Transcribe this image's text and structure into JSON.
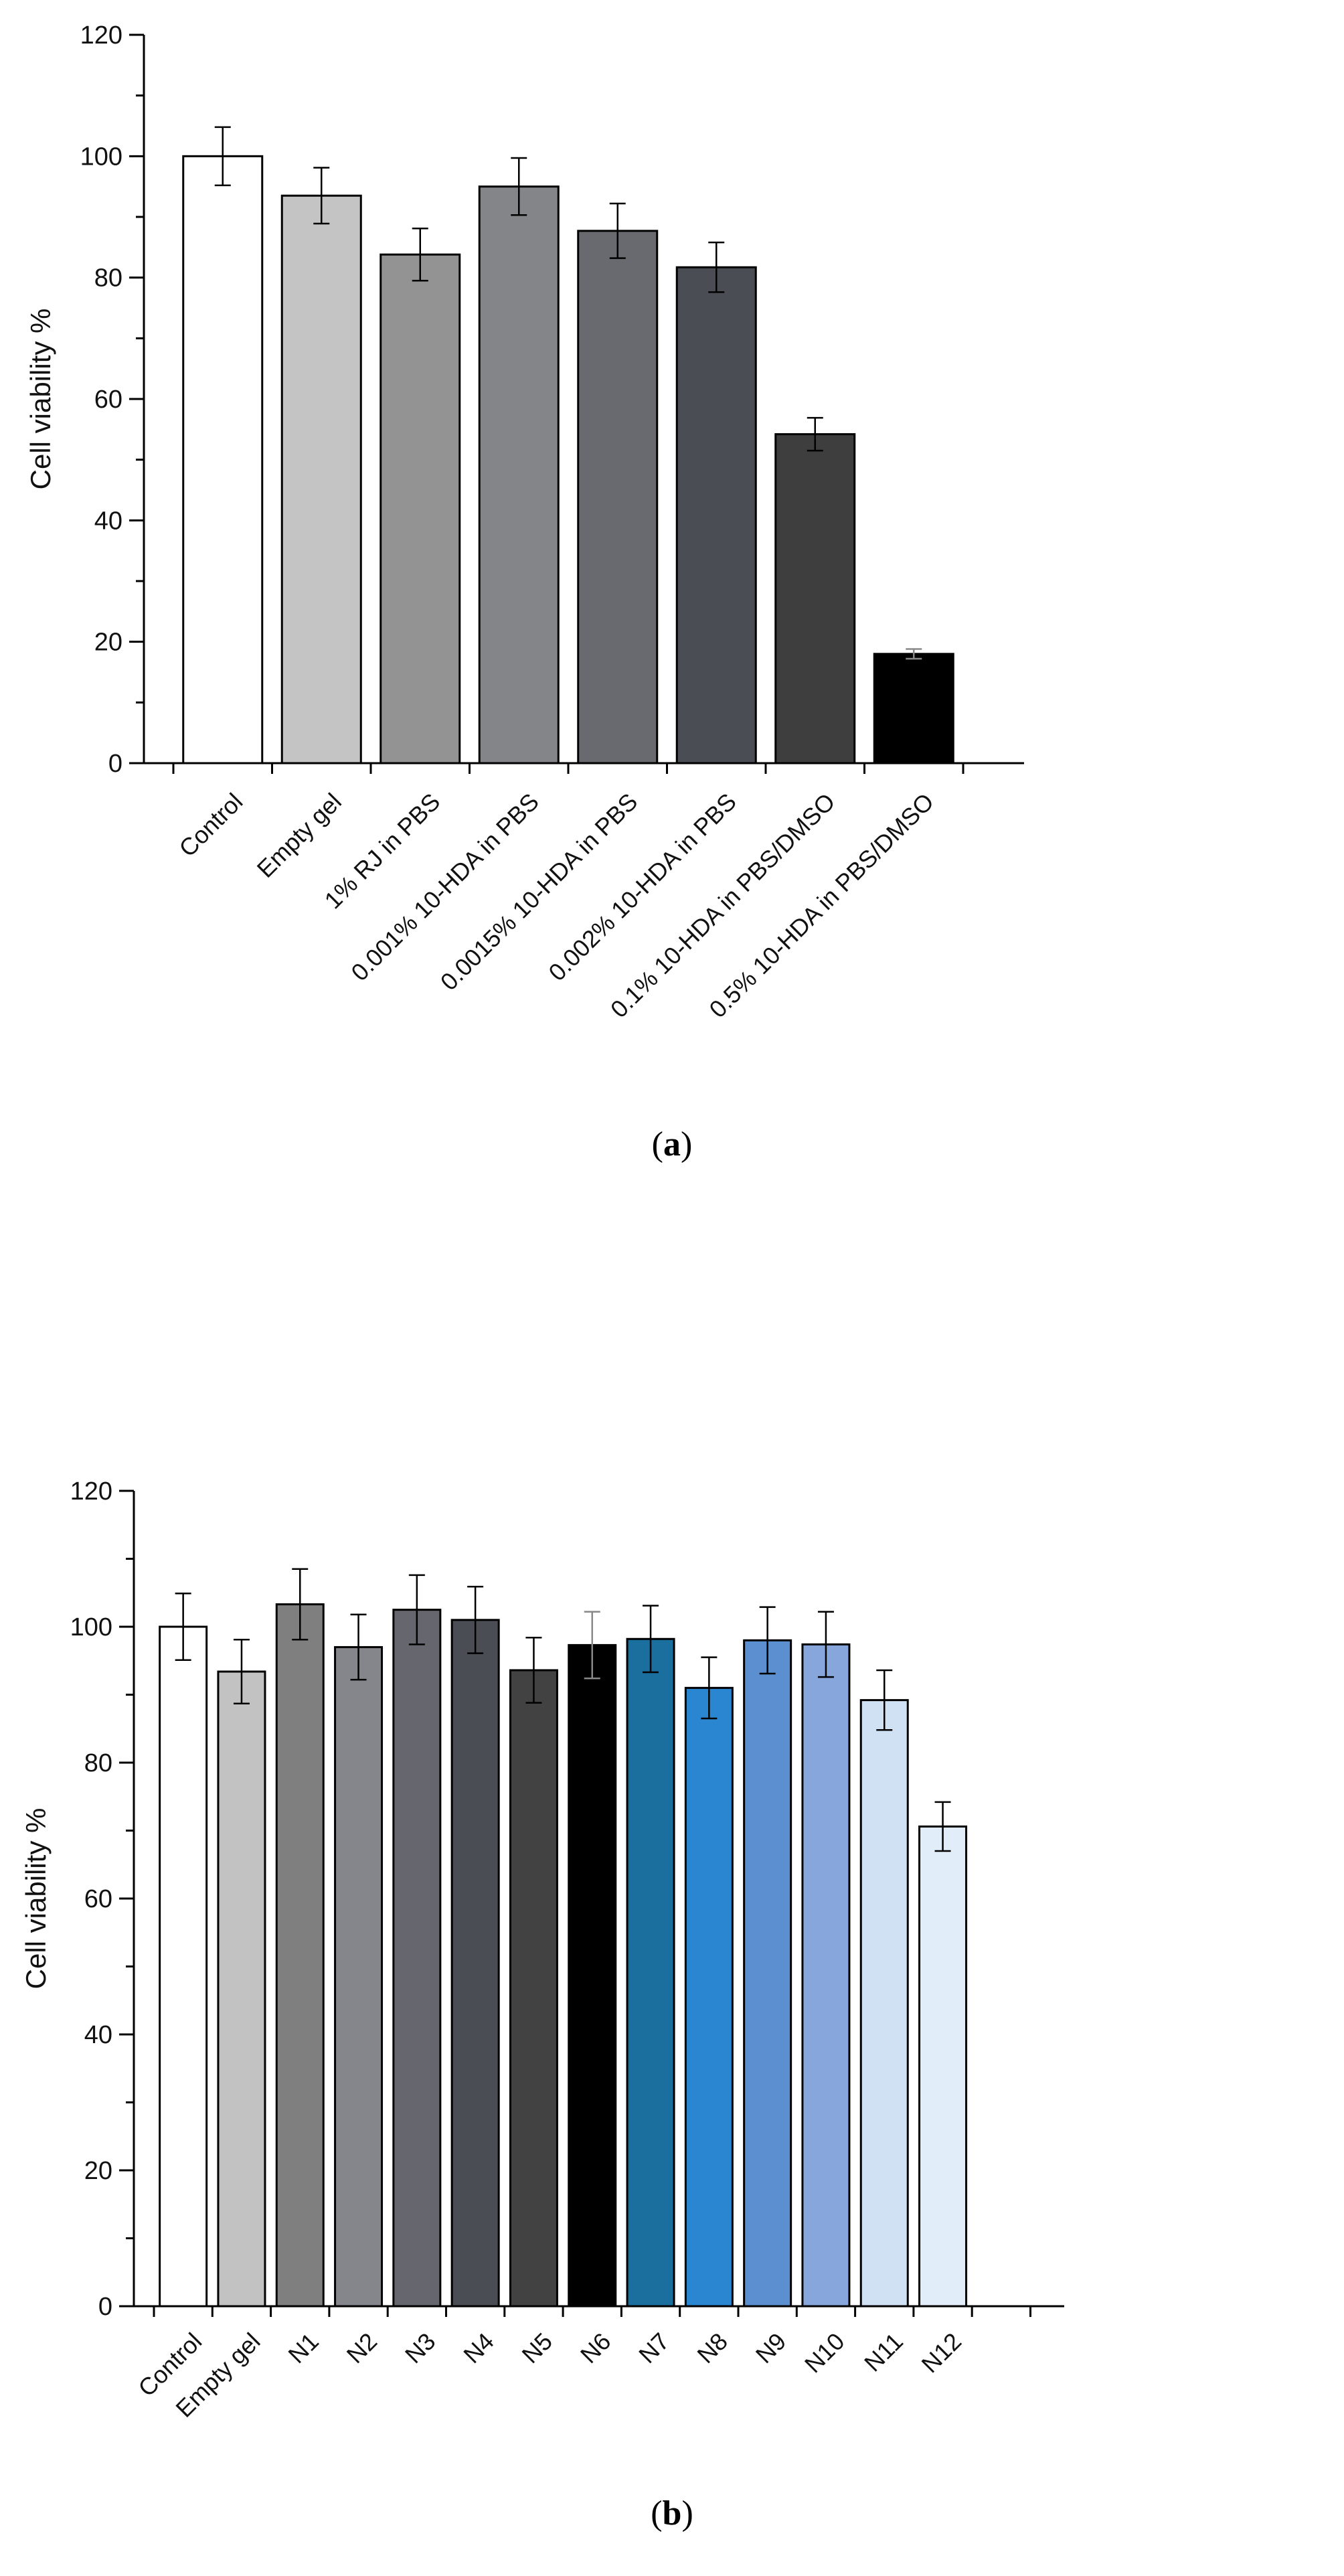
{
  "chart_data": [
    {
      "type": "bar",
      "panel": "a",
      "ylabel": "Cell viability %",
      "xlabel": "",
      "ylim": [
        0,
        120
      ],
      "yticks": [
        0,
        20,
        40,
        60,
        80,
        100,
        120
      ],
      "grid": false,
      "categories": [
        "Control",
        "Empty gel",
        "1% RJ in PBS",
        "0.001% 10-HDA in PBS",
        "0.0015% 10-HDA in PBS",
        "0.002% 10-HDA in PBS",
        "0.1% 10-HDA in PBS/DMSO",
        "0.5% 10-HDA in PBS/DMSO"
      ],
      "values": [
        100,
        93.5,
        83.8,
        95,
        87.7,
        81.7,
        54.2,
        18
      ],
      "errors": [
        4.8,
        4.6,
        4.3,
        4.7,
        4.5,
        4.1,
        2.7,
        0.8
      ],
      "colors": [
        "#ffffff",
        "#c4c4c4",
        "#939393",
        "#848589",
        "#686a6f",
        "#4a4d53",
        "#3e3e3e",
        "#000000"
      ]
    },
    {
      "type": "bar",
      "panel": "b",
      "ylabel": "Cell viability %",
      "xlabel": "",
      "ylim": [
        0,
        120
      ],
      "yticks": [
        0,
        20,
        40,
        60,
        80,
        100,
        120
      ],
      "grid": false,
      "categories": [
        "Control",
        "Empty gel",
        "N1",
        "N2",
        "N3",
        "N4",
        "N5",
        "N6",
        "N7",
        "N8",
        "N9",
        "N10",
        "N11",
        "N12"
      ],
      "values": [
        100,
        93.4,
        103.3,
        97,
        102.5,
        101,
        93.6,
        97.3,
        98.2,
        91,
        98,
        97.4,
        89.2,
        70.6
      ],
      "errors": [
        4.9,
        4.7,
        5.2,
        4.8,
        5.1,
        4.9,
        4.8,
        4.9,
        4.9,
        4.5,
        4.9,
        4.8,
        4.4,
        3.6
      ],
      "colors": [
        "#ffffff",
        "#c2c2c2",
        "#7f7f7f",
        "#85868b",
        "#66676e",
        "#4a4d53",
        "#424242",
        "#000000",
        "#1a6f9f",
        "#2a86d1",
        "#5c8fcf",
        "#87a7dc",
        "#cfe1f2",
        "#e2edfa"
      ]
    }
  ],
  "panel_labels": {
    "a": "a",
    "b": "b"
  }
}
